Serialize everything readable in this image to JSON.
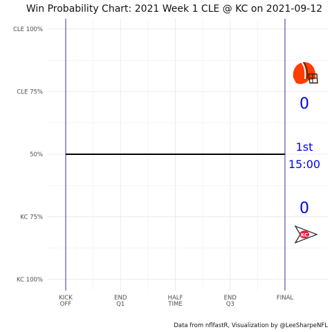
{
  "chart_data": {
    "type": "line",
    "title": "Win Probability Chart: 2021 Week 1 CLE @ KC on 2021-09-12",
    "caption": "Data from nflfastR, Visualization by @LeeSharpeNFL",
    "y_ticks": [
      {
        "value": 1.0,
        "label": "CLE 100%"
      },
      {
        "value": 0.75,
        "label": "CLE 75%"
      },
      {
        "value": 0.5,
        "label": "50%"
      },
      {
        "value": 0.25,
        "label": "KC 75%"
      },
      {
        "value": 0.0,
        "label": "KC 100%"
      }
    ],
    "x_ticks": [
      {
        "value": 0,
        "lines": [
          "KICK",
          "OFF"
        ]
      },
      {
        "value": 900,
        "lines": [
          "END",
          "Q1"
        ]
      },
      {
        "value": 1800,
        "lines": [
          "HALF",
          "TIME"
        ]
      },
      {
        "value": 2700,
        "lines": [
          "END",
          "Q3"
        ]
      },
      {
        "value": 3600,
        "lines": [
          "FINAL"
        ]
      }
    ],
    "xlim": [
      0,
      3600
    ],
    "ylim": [
      0,
      1
    ],
    "series": [
      {
        "x": [
          0,
          3600
        ],
        "y": [
          0.5,
          0.5
        ]
      }
    ],
    "grid": true,
    "away": {
      "team": "CLE",
      "score": "0",
      "logo": "browns-helmet-icon",
      "color": "#ff3c00"
    },
    "home": {
      "team": "KC",
      "score": "0",
      "logo": "chiefs-arrowhead-icon",
      "color": "#e31837"
    },
    "clock": {
      "quarter": "1st",
      "time": "15:00"
    },
    "colors": {
      "line": "#000000",
      "bounds": "#00008b",
      "score": "#0000ee",
      "grid": "#ebebeb"
    }
  }
}
